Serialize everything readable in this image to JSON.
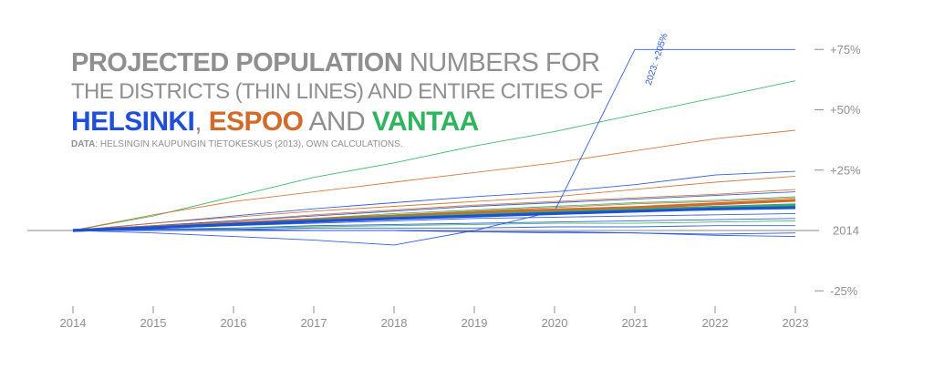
{
  "colors": {
    "helsinki": "#1f4fd8",
    "espoo": "#d26a2b",
    "vantaa": "#2fb35c",
    "text": "#8f8f8f",
    "axis": "#8f8f8f"
  },
  "title": {
    "line1_bold": "PROJECTED POPULATION",
    "line1_rest": " NUMBERS FOR",
    "line2": "THE DISTRICTS (THIN LINES) AND ENTIRE CITIES OF",
    "city1": "HELSINKI",
    "sep1": ", ",
    "city2": "ESPOO",
    "sep2": " AND ",
    "city3": "VANTAA"
  },
  "source": {
    "label": "DATA",
    "text": ": HELSINGIN KAUPUNGIN TIETOKESKUS (2013), OWN CALCULATIONS."
  },
  "chart_data": {
    "type": "line",
    "x": [
      2014,
      2015,
      2016,
      2017,
      2018,
      2019,
      2020,
      2021,
      2022,
      2023
    ],
    "xlim": [
      2014,
      2023
    ],
    "ylim": [
      -30,
      75
    ],
    "y_unit": "% change from 2014",
    "y_ticks": [
      {
        "value": 75,
        "label": "+75%"
      },
      {
        "value": 50,
        "label": "+50%"
      },
      {
        "value": 25,
        "label": "+25%"
      },
      {
        "value": 0,
        "label": "2014"
      },
      {
        "value": -25,
        "label": "-25%"
      }
    ],
    "annotation": {
      "text": "2023: +205%",
      "x": 2021.2,
      "y": 60
    },
    "districts": [
      {
        "city": "vantaa",
        "values": [
          0,
          6,
          14,
          22,
          28,
          35,
          41,
          48,
          55,
          62
        ]
      },
      {
        "city": "espoo",
        "values": [
          0,
          6.5,
          12,
          16,
          20,
          24,
          28,
          33,
          38,
          41.5
        ]
      },
      {
        "city": "helsinki",
        "values": [
          0,
          3,
          6,
          9,
          11.5,
          14,
          16,
          19,
          23,
          24.5
        ]
      },
      {
        "city": "espoo",
        "values": [
          0,
          3,
          5.5,
          8,
          10,
          12,
          14,
          17,
          20,
          22.5
        ]
      },
      {
        "city": "espoo",
        "values": [
          0,
          2,
          4,
          6.5,
          8.5,
          10.5,
          12,
          13.5,
          15,
          17
        ]
      },
      {
        "city": "helsinki",
        "values": [
          0,
          2,
          4,
          6,
          8,
          10,
          11.5,
          13,
          14.5,
          16
        ]
      },
      {
        "city": "vantaa",
        "values": [
          0,
          1.5,
          3,
          5,
          7,
          8.5,
          10,
          11.5,
          12.5,
          14
        ]
      },
      {
        "city": "espoo",
        "values": [
          0,
          1.8,
          3.5,
          5,
          6.5,
          8,
          9.5,
          11,
          12,
          13.5
        ]
      },
      {
        "city": "helsinki",
        "values": [
          0,
          1.5,
          3,
          4.5,
          6,
          7,
          8,
          9,
          10,
          11
        ]
      },
      {
        "city": "vantaa",
        "values": [
          0,
          1,
          2.5,
          3.5,
          5,
          6,
          7,
          8,
          8.5,
          9
        ]
      },
      {
        "city": "helsinki",
        "values": [
          0,
          1,
          2,
          3,
          4,
          5,
          5.5,
          6,
          6.5,
          7
        ]
      },
      {
        "city": "helsinki",
        "values": [
          0,
          0.5,
          1,
          2,
          2.5,
          3,
          3.5,
          4,
          4.5,
          5
        ]
      },
      {
        "city": "vantaa",
        "values": [
          0,
          0.5,
          1,
          1.5,
          2,
          2.5,
          3,
          3,
          3.5,
          4
        ]
      },
      {
        "city": "helsinki",
        "values": [
          0,
          0.5,
          0.5,
          1,
          1,
          1,
          1.5,
          1.5,
          2,
          2
        ]
      },
      {
        "city": "helsinki",
        "values": [
          0,
          0,
          0,
          0,
          0,
          -0.5,
          -1,
          -1,
          -1.5,
          -1
        ]
      },
      {
        "city": "helsinki",
        "values": [
          0,
          0.5,
          0.5,
          0,
          0,
          -0.5,
          -0.5,
          -1,
          -2,
          -2.5
        ]
      },
      {
        "city": "helsinki",
        "values": [
          0,
          -1,
          -2.5,
          -4,
          -6,
          0,
          8,
          75,
          75,
          75
        ]
      }
    ],
    "cities": [
      {
        "city": "espoo",
        "values": [
          0,
          1.5,
          3,
          4.5,
          6,
          7.5,
          8.5,
          9.5,
          11,
          12.5
        ]
      },
      {
        "city": "vantaa",
        "values": [
          0,
          1.3,
          2.6,
          4,
          5.3,
          6.5,
          7.5,
          8.5,
          9.5,
          10.5
        ]
      },
      {
        "city": "helsinki",
        "values": [
          0,
          1.2,
          2.5,
          3.8,
          5,
          6,
          7,
          8,
          9,
          9.5
        ]
      }
    ]
  }
}
